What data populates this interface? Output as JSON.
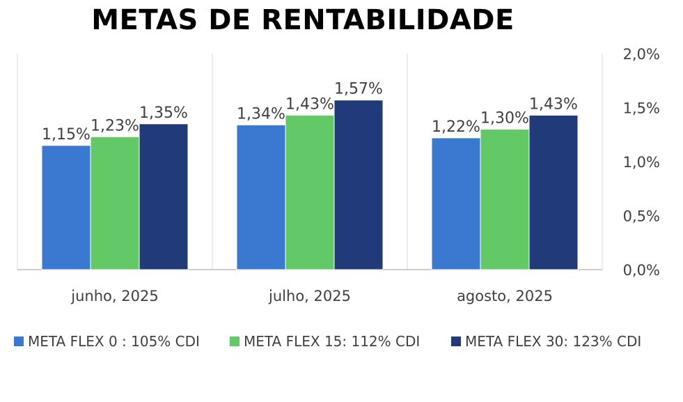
{
  "chart_data": {
    "type": "bar",
    "title": "METAS DE RENTABILIDADE",
    "categories": [
      "junho, 2025",
      "julho, 2025",
      "agosto, 2025"
    ],
    "series": [
      {
        "name": "META FLEX 0 : 105% CDI",
        "color": "#3B78CF",
        "values": [
          1.15,
          1.34,
          1.22
        ],
        "labels": [
          "1,15%",
          "1,34%",
          "1,22%"
        ]
      },
      {
        "name": "META FLEX 15: 112% CDI",
        "color": "#63C866",
        "values": [
          1.23,
          1.43,
          1.3
        ],
        "labels": [
          "1,23%",
          "1,43%",
          "1,30%"
        ]
      },
      {
        "name": "META FLEX 30: 123% CDI",
        "color": "#213A7A",
        "values": [
          1.35,
          1.57,
          1.43
        ],
        "labels": [
          "1,35%",
          "1,57%",
          "1,43%"
        ]
      }
    ],
    "ylim": [
      0,
      2.0
    ],
    "yticks": [
      0,
      0.5,
      1.0,
      1.5,
      2.0
    ],
    "ytick_labels": [
      "0,0%",
      "0,5%",
      "1,0%",
      "1,5%",
      "2,0%"
    ],
    "y_axis_side": "right",
    "legend_position": "bottom",
    "xlabel": "",
    "ylabel": ""
  }
}
